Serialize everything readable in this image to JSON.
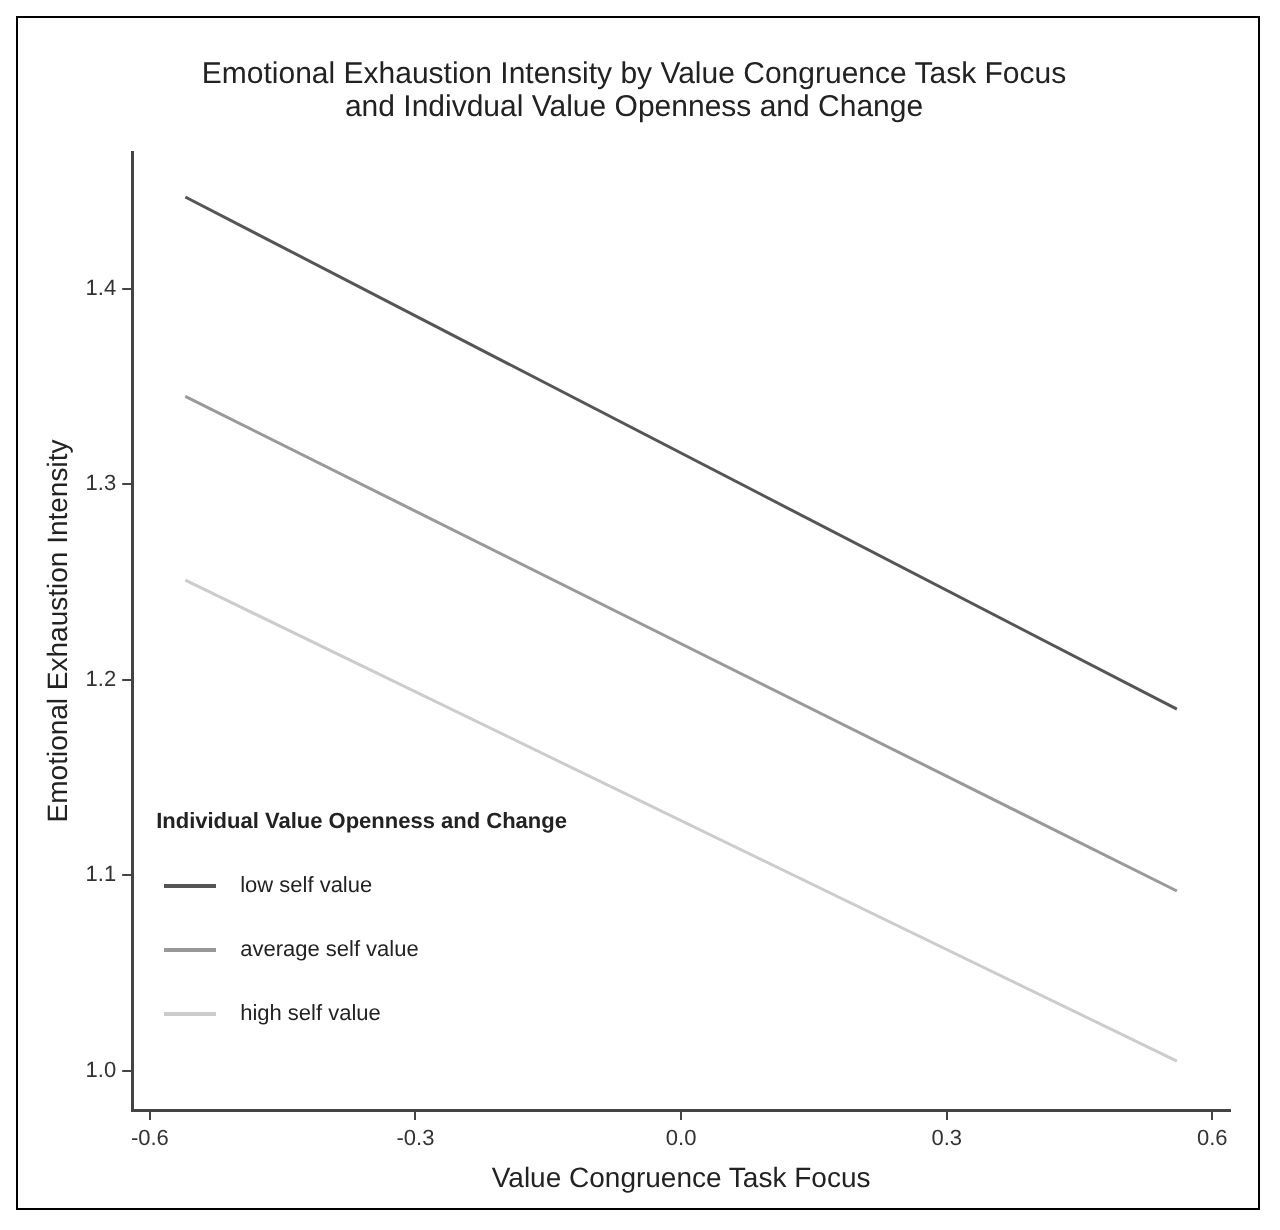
{
  "chart_data": {
    "type": "line",
    "title": "Emotional Exhaustion Intensity by Value Congruence Task Focus\nand Indivdual Value Openness and Change",
    "xlabel": "Value Congruence Task Focus",
    "ylabel": "Emotional Exhaustion Intensity",
    "legend_title": "Individual Value Openness and Change",
    "x": [
      -0.56,
      0.56
    ],
    "series": [
      {
        "name": "low self value",
        "color": "#555555",
        "values": [
          1.447,
          1.185
        ]
      },
      {
        "name": "average self value",
        "color": "#999999",
        "values": [
          1.345,
          1.092
        ]
      },
      {
        "name": "high self value",
        "color": "#cccccc",
        "values": [
          1.251,
          1.005
        ]
      }
    ],
    "xlim": [
      -0.62,
      0.62
    ],
    "ylim": [
      0.98,
      1.47
    ],
    "xticks": [
      {
        "value": -0.6,
        "label": "-0.6"
      },
      {
        "value": -0.3,
        "label": "-0.3"
      },
      {
        "value": 0,
        "label": "0.0"
      },
      {
        "value": 0.3,
        "label": "0.3"
      },
      {
        "value": 0.6,
        "label": "0.6"
      }
    ],
    "yticks": [
      {
        "value": 1.0,
        "label": "1.0"
      },
      {
        "value": 1.1,
        "label": "1.1"
      },
      {
        "value": 1.2,
        "label": "1.2"
      },
      {
        "value": 1.3,
        "label": "1.3"
      },
      {
        "value": 1.4,
        "label": "1.4"
      }
    ],
    "grid": false,
    "legend": "bottom left",
    "marker": "none",
    "line_style": "solid"
  }
}
